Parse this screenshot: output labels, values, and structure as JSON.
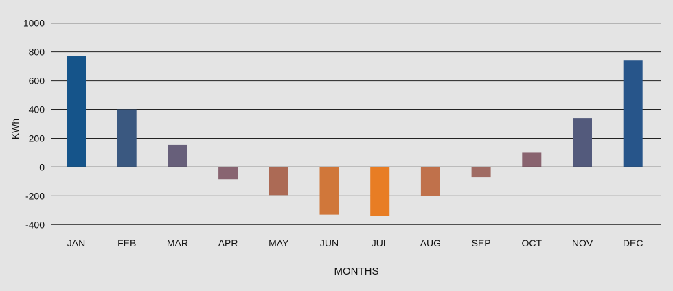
{
  "chart_data": {
    "type": "bar",
    "title": "",
    "xlabel": "MONTHS",
    "ylabel": "KWh",
    "ylim": [
      -400,
      1000
    ],
    "yticks": [
      1000,
      800,
      600,
      400,
      200,
      0,
      -200,
      -400
    ],
    "grid": true,
    "categories": [
      "JAN",
      "FEB",
      "MAR",
      "APR",
      "MAY",
      "JUN",
      "JUL",
      "AUG",
      "SEP",
      "OCT",
      "NOV",
      "DEC"
    ],
    "values": [
      770,
      400,
      155,
      -85,
      -195,
      -330,
      -340,
      -200,
      -70,
      100,
      340,
      740
    ],
    "colors": [
      "#15548a",
      "#3a5880",
      "#675f7a",
      "#886471",
      "#ac6a55",
      "#d0773a",
      "#e87d24",
      "#c0714b",
      "#a06b63",
      "#89636f",
      "#535a7c",
      "#27558a"
    ]
  }
}
